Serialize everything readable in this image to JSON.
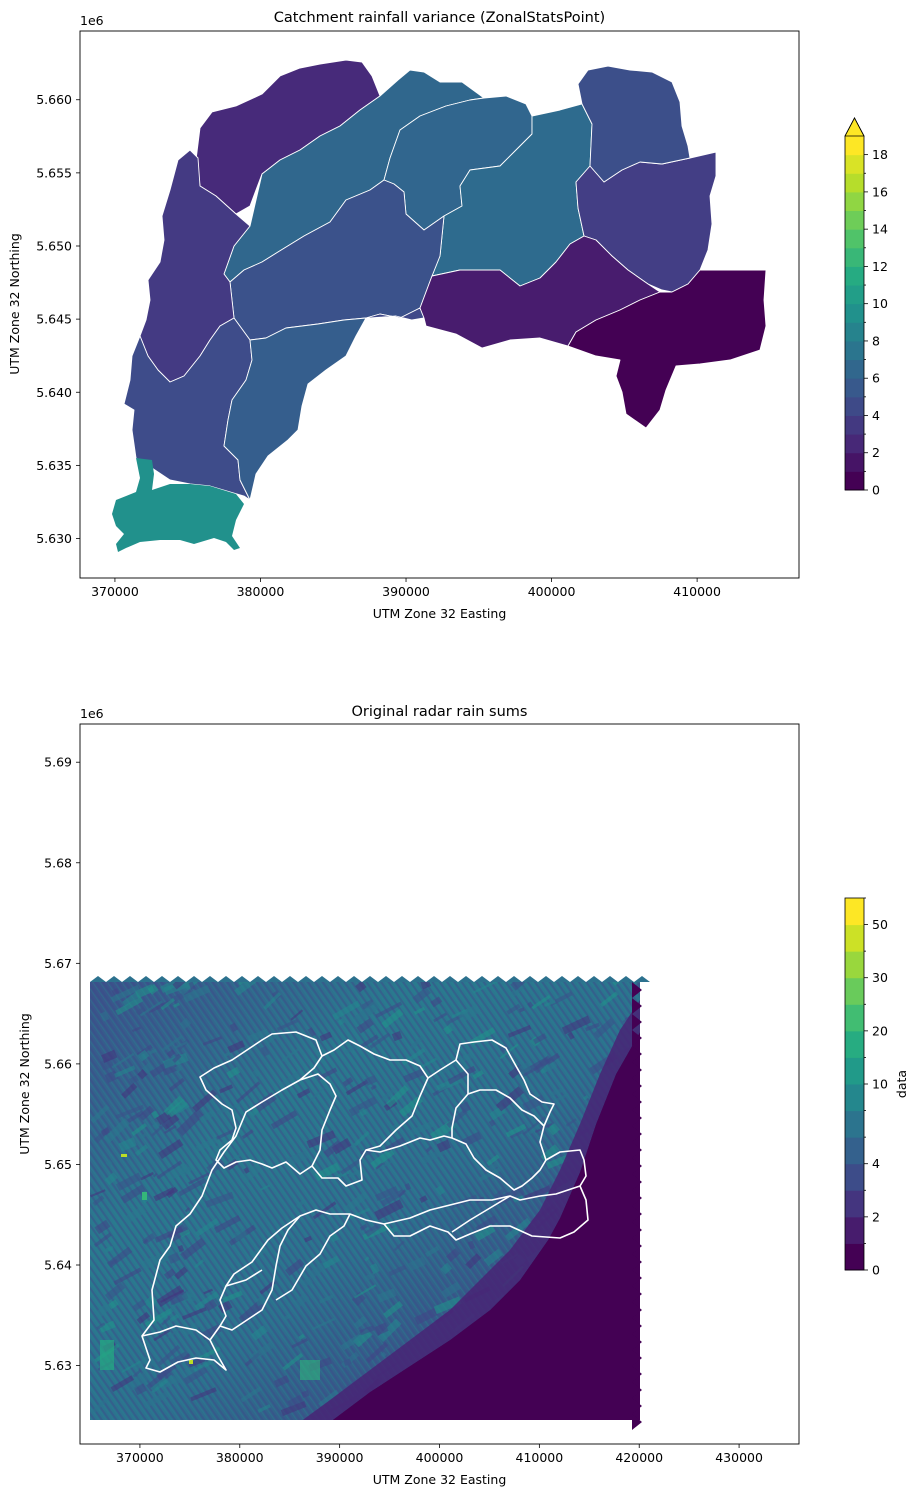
{
  "chart_data": [
    {
      "type": "choropleth",
      "title": "Catchment rainfall variance (ZonalStatsPoint)",
      "xlabel": "UTM Zone 32 Easting",
      "ylabel": "UTM Zone 32 Northing",
      "y_offset_label": "1e6",
      "xlim": [
        367600,
        417000
      ],
      "ylim": [
        5627300,
        5664700
      ],
      "x_ticks": [
        {
          "value": 370000,
          "label": "370000"
        },
        {
          "value": 380000,
          "label": "380000"
        },
        {
          "value": 390000,
          "label": "390000"
        },
        {
          "value": 400000,
          "label": "400000"
        },
        {
          "value": 410000,
          "label": "410000"
        }
      ],
      "y_ticks": [
        {
          "value": 5630000,
          "label": "5.630"
        },
        {
          "value": 5635000,
          "label": "5.635"
        },
        {
          "value": 5640000,
          "label": "5.640"
        },
        {
          "value": 5645000,
          "label": "5.645"
        },
        {
          "value": 5650000,
          "label": "5.650"
        },
        {
          "value": 5655000,
          "label": "5.655"
        },
        {
          "value": 5660000,
          "label": "5.660"
        }
      ],
      "catchments": [
        {
          "id": "A",
          "value": 2.3,
          "color": "#472a7a"
        },
        {
          "id": "B",
          "value": 6.6,
          "color": "#30678d"
        },
        {
          "id": "C",
          "value": 6.3,
          "color": "#31668e"
        },
        {
          "id": "D",
          "value": 6.9,
          "color": "#2e6b8e"
        },
        {
          "id": "E",
          "value": 4.6,
          "color": "#3b528b"
        },
        {
          "id": "F",
          "value": 3.2,
          "color": "#443a83"
        },
        {
          "id": "G",
          "value": 3.3,
          "color": "#433e85"
        },
        {
          "id": "H",
          "value": 5.3,
          "color": "#3c4f8a"
        },
        {
          "id": "I",
          "value": 5.2,
          "color": "#3e4c8a"
        },
        {
          "id": "J",
          "value": 6.1,
          "color": "#355e8d"
        },
        {
          "id": "K",
          "value": 4.7,
          "color": "#3f4889"
        },
        {
          "id": "L",
          "value": 2.5,
          "color": "#481c6e"
        },
        {
          "id": "M",
          "value": 0.5,
          "color": "#440154"
        },
        {
          "id": "N",
          "value": 11.4,
          "color": "#21918c"
        }
      ],
      "colorbar": {
        "min": 0,
        "max": 19,
        "extend": "max",
        "levels": [
          0,
          1,
          2,
          3,
          4,
          5,
          6,
          7,
          8,
          9,
          10,
          11,
          12,
          13,
          14,
          15,
          16,
          17,
          18,
          19
        ],
        "tick_labels": [
          "0",
          "2",
          "4",
          "6",
          "8",
          "10",
          "12",
          "14",
          "16",
          "18"
        ],
        "label": ""
      }
    },
    {
      "type": "heatmap",
      "title": "Original radar rain sums",
      "xlabel": "UTM Zone 32 Easting",
      "ylabel": "UTM Zone 32 Northing",
      "y_offset_label": "1e6",
      "xlim": [
        364000,
        436000
      ],
      "ylim": [
        5622200,
        5693800
      ],
      "data_extent": {
        "x": [
          365000,
          420000
        ],
        "y": [
          5624000,
          5668000
        ]
      },
      "x_ticks": [
        {
          "value": 370000,
          "label": "370000"
        },
        {
          "value": 380000,
          "label": "380000"
        },
        {
          "value": 390000,
          "label": "390000"
        },
        {
          "value": 400000,
          "label": "400000"
        },
        {
          "value": 410000,
          "label": "410000"
        },
        {
          "value": 420000,
          "label": "420000"
        },
        {
          "value": 430000,
          "label": "430000"
        }
      ],
      "y_ticks": [
        {
          "value": 5630000,
          "label": "5.63"
        },
        {
          "value": 5640000,
          "label": "5.64"
        },
        {
          "value": 5650000,
          "label": "5.65"
        },
        {
          "value": 5660000,
          "label": "5.66"
        },
        {
          "value": 5670000,
          "label": "5.67"
        },
        {
          "value": 5680000,
          "label": "5.68"
        },
        {
          "value": 5690000,
          "label": "5.69"
        }
      ],
      "colorbar": {
        "label": "data",
        "tick_labels": [
          "0",
          "2",
          "4",
          "10",
          "20",
          "30",
          "50"
        ],
        "levels": [
          0,
          1,
          2,
          3,
          4,
          5,
          7.5,
          10,
          15,
          20,
          25,
          30,
          40,
          50,
          55
        ]
      }
    }
  ]
}
